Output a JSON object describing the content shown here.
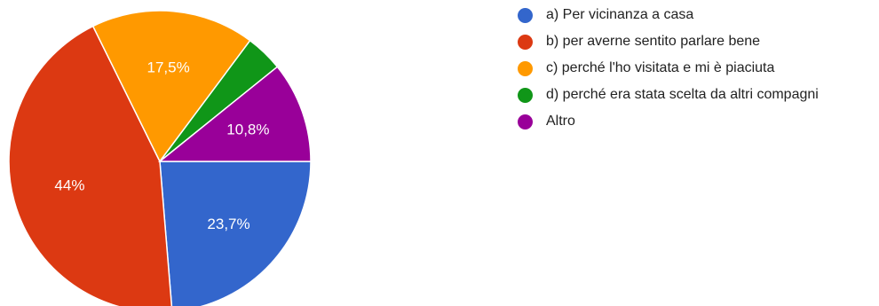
{
  "chart_data": {
    "type": "pie",
    "title": "",
    "slices": [
      {
        "label": "a) Per vicinanza a casa",
        "value": 23.7,
        "display": "23,7%",
        "color": "#3366cc"
      },
      {
        "label": "b) per averne sentito parlare bene",
        "value": 44.0,
        "display": "44%",
        "color": "#dc3912"
      },
      {
        "label": "c) perché l'ho visitata e mi è piaciuta",
        "value": 17.5,
        "display": "17,5%",
        "color": "#ff9900"
      },
      {
        "label": "d) perché era stata scelta da altri compagni",
        "value": 4.0,
        "display": "",
        "color": "#109618"
      },
      {
        "label": "Altro",
        "value": 10.8,
        "display": "10,8%",
        "color": "#990099"
      }
    ],
    "start": "3 o'clock, clockwise",
    "legend_position": "right"
  }
}
